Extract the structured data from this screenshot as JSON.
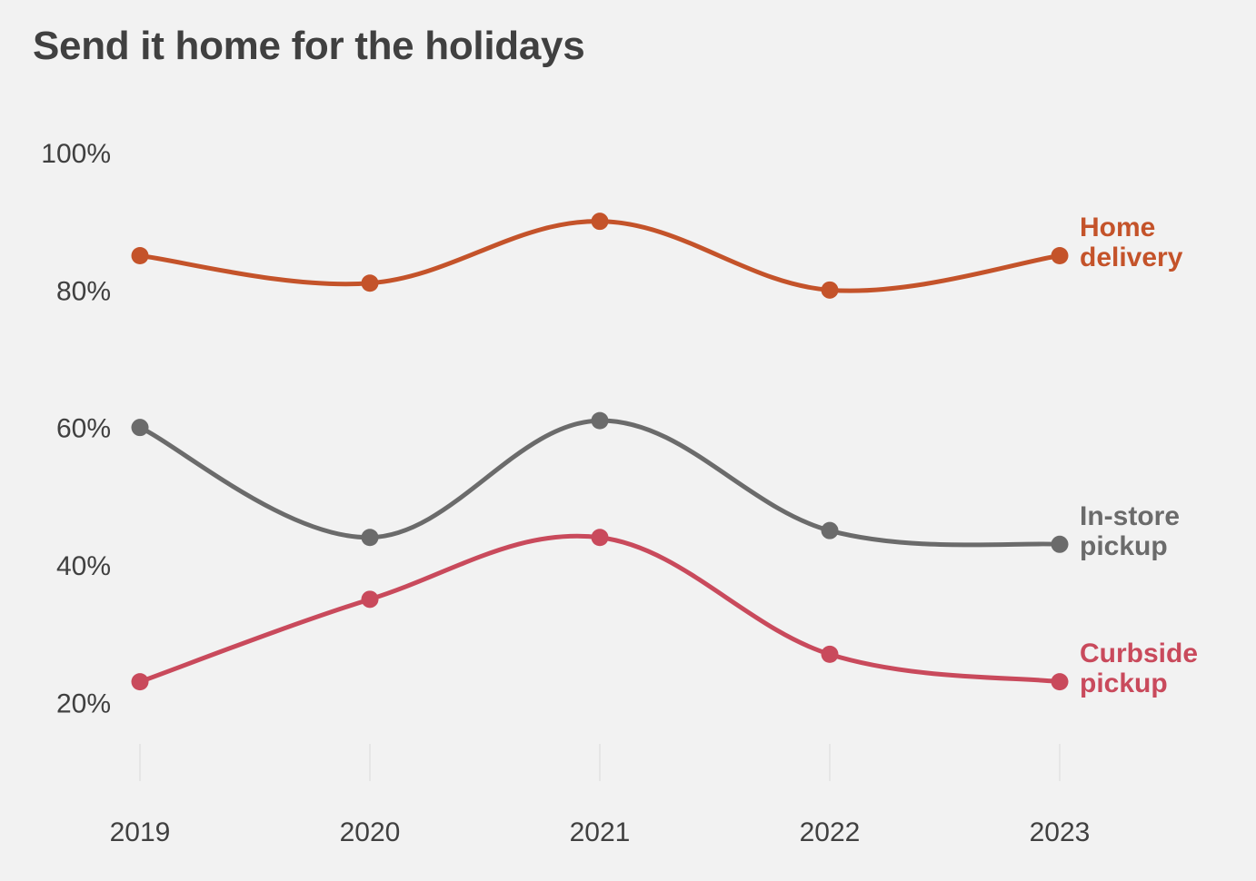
{
  "chart_data": {
    "type": "line",
    "title": "Send it home for the holidays",
    "xlabel": "",
    "ylabel": "",
    "categories": [
      "2019",
      "2020",
      "2021",
      "2022",
      "2023"
    ],
    "ylim": [
      10,
      100
    ],
    "yticks": [
      20,
      40,
      60,
      80,
      100
    ],
    "ytick_labels": [
      "20%",
      "40%",
      "60%",
      "80%",
      "100%"
    ],
    "grid": false,
    "legend": "direct labels at right end of lines",
    "series": [
      {
        "name": "Home delivery",
        "label_lines": [
          "Home",
          "delivery"
        ],
        "color": "#c4532a",
        "values": [
          85,
          81,
          90,
          80,
          85
        ]
      },
      {
        "name": "In-store pickup",
        "label_lines": [
          "In-store",
          "pickup"
        ],
        "color": "#6b6b6b",
        "values": [
          60,
          44,
          61,
          45,
          43
        ]
      },
      {
        "name": "Curbside pickup",
        "label_lines": [
          "Curbside",
          "pickup"
        ],
        "color": "#c94a5c",
        "values": [
          23,
          35,
          44,
          27,
          23
        ]
      }
    ]
  },
  "colors": {
    "background": "#f2f2f2",
    "text": "#404040",
    "axis_line": "#e6e6e6"
  }
}
